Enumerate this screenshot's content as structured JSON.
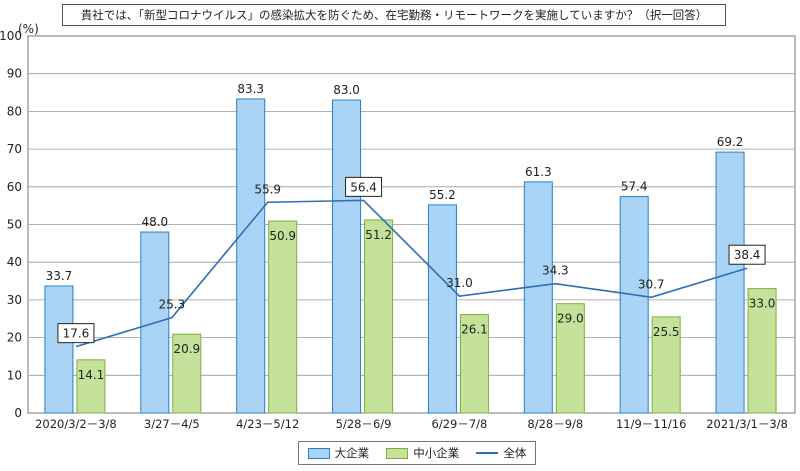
{
  "chart_data": {
    "type": "bar",
    "title": "貴社では、「新型コロナウイルス」の感染拡大を防ぐため、在宅勤務・リモートワークを実施していますか？（択一回答）",
    "ylabel": "(%)",
    "ylim": [
      0,
      100
    ],
    "yticks": [
      0,
      10,
      20,
      30,
      40,
      50,
      60,
      70,
      80,
      90,
      100
    ],
    "categories": [
      "2020/3/2－3/8",
      "3/27－4/5",
      "4/23－5/12",
      "5/28－6/9",
      "6/29－7/8",
      "8/28－9/8",
      "11/9－11/16",
      "2021/3/1－3/8"
    ],
    "series": [
      {
        "name": "大企業",
        "type": "bar",
        "color": "#a9d4f5",
        "edge": "#2b7fc4",
        "values": [
          33.7,
          48.0,
          83.3,
          83.0,
          55.2,
          61.3,
          57.4,
          69.2
        ]
      },
      {
        "name": "中小企業",
        "type": "bar",
        "color": "#c5e29a",
        "edge": "#7fae3f",
        "values": [
          14.1,
          20.9,
          50.9,
          51.2,
          26.1,
          29.0,
          25.5,
          33.0
        ]
      },
      {
        "name": "全体",
        "type": "line",
        "color": "#2f6eb5",
        "values": [
          17.6,
          25.3,
          55.9,
          56.4,
          31.0,
          34.3,
          30.7,
          38.4
        ],
        "boxed": [
          true,
          false,
          false,
          true,
          false,
          false,
          false,
          true
        ]
      }
    ],
    "grid": "horizontal",
    "legend": "bottom-center"
  }
}
